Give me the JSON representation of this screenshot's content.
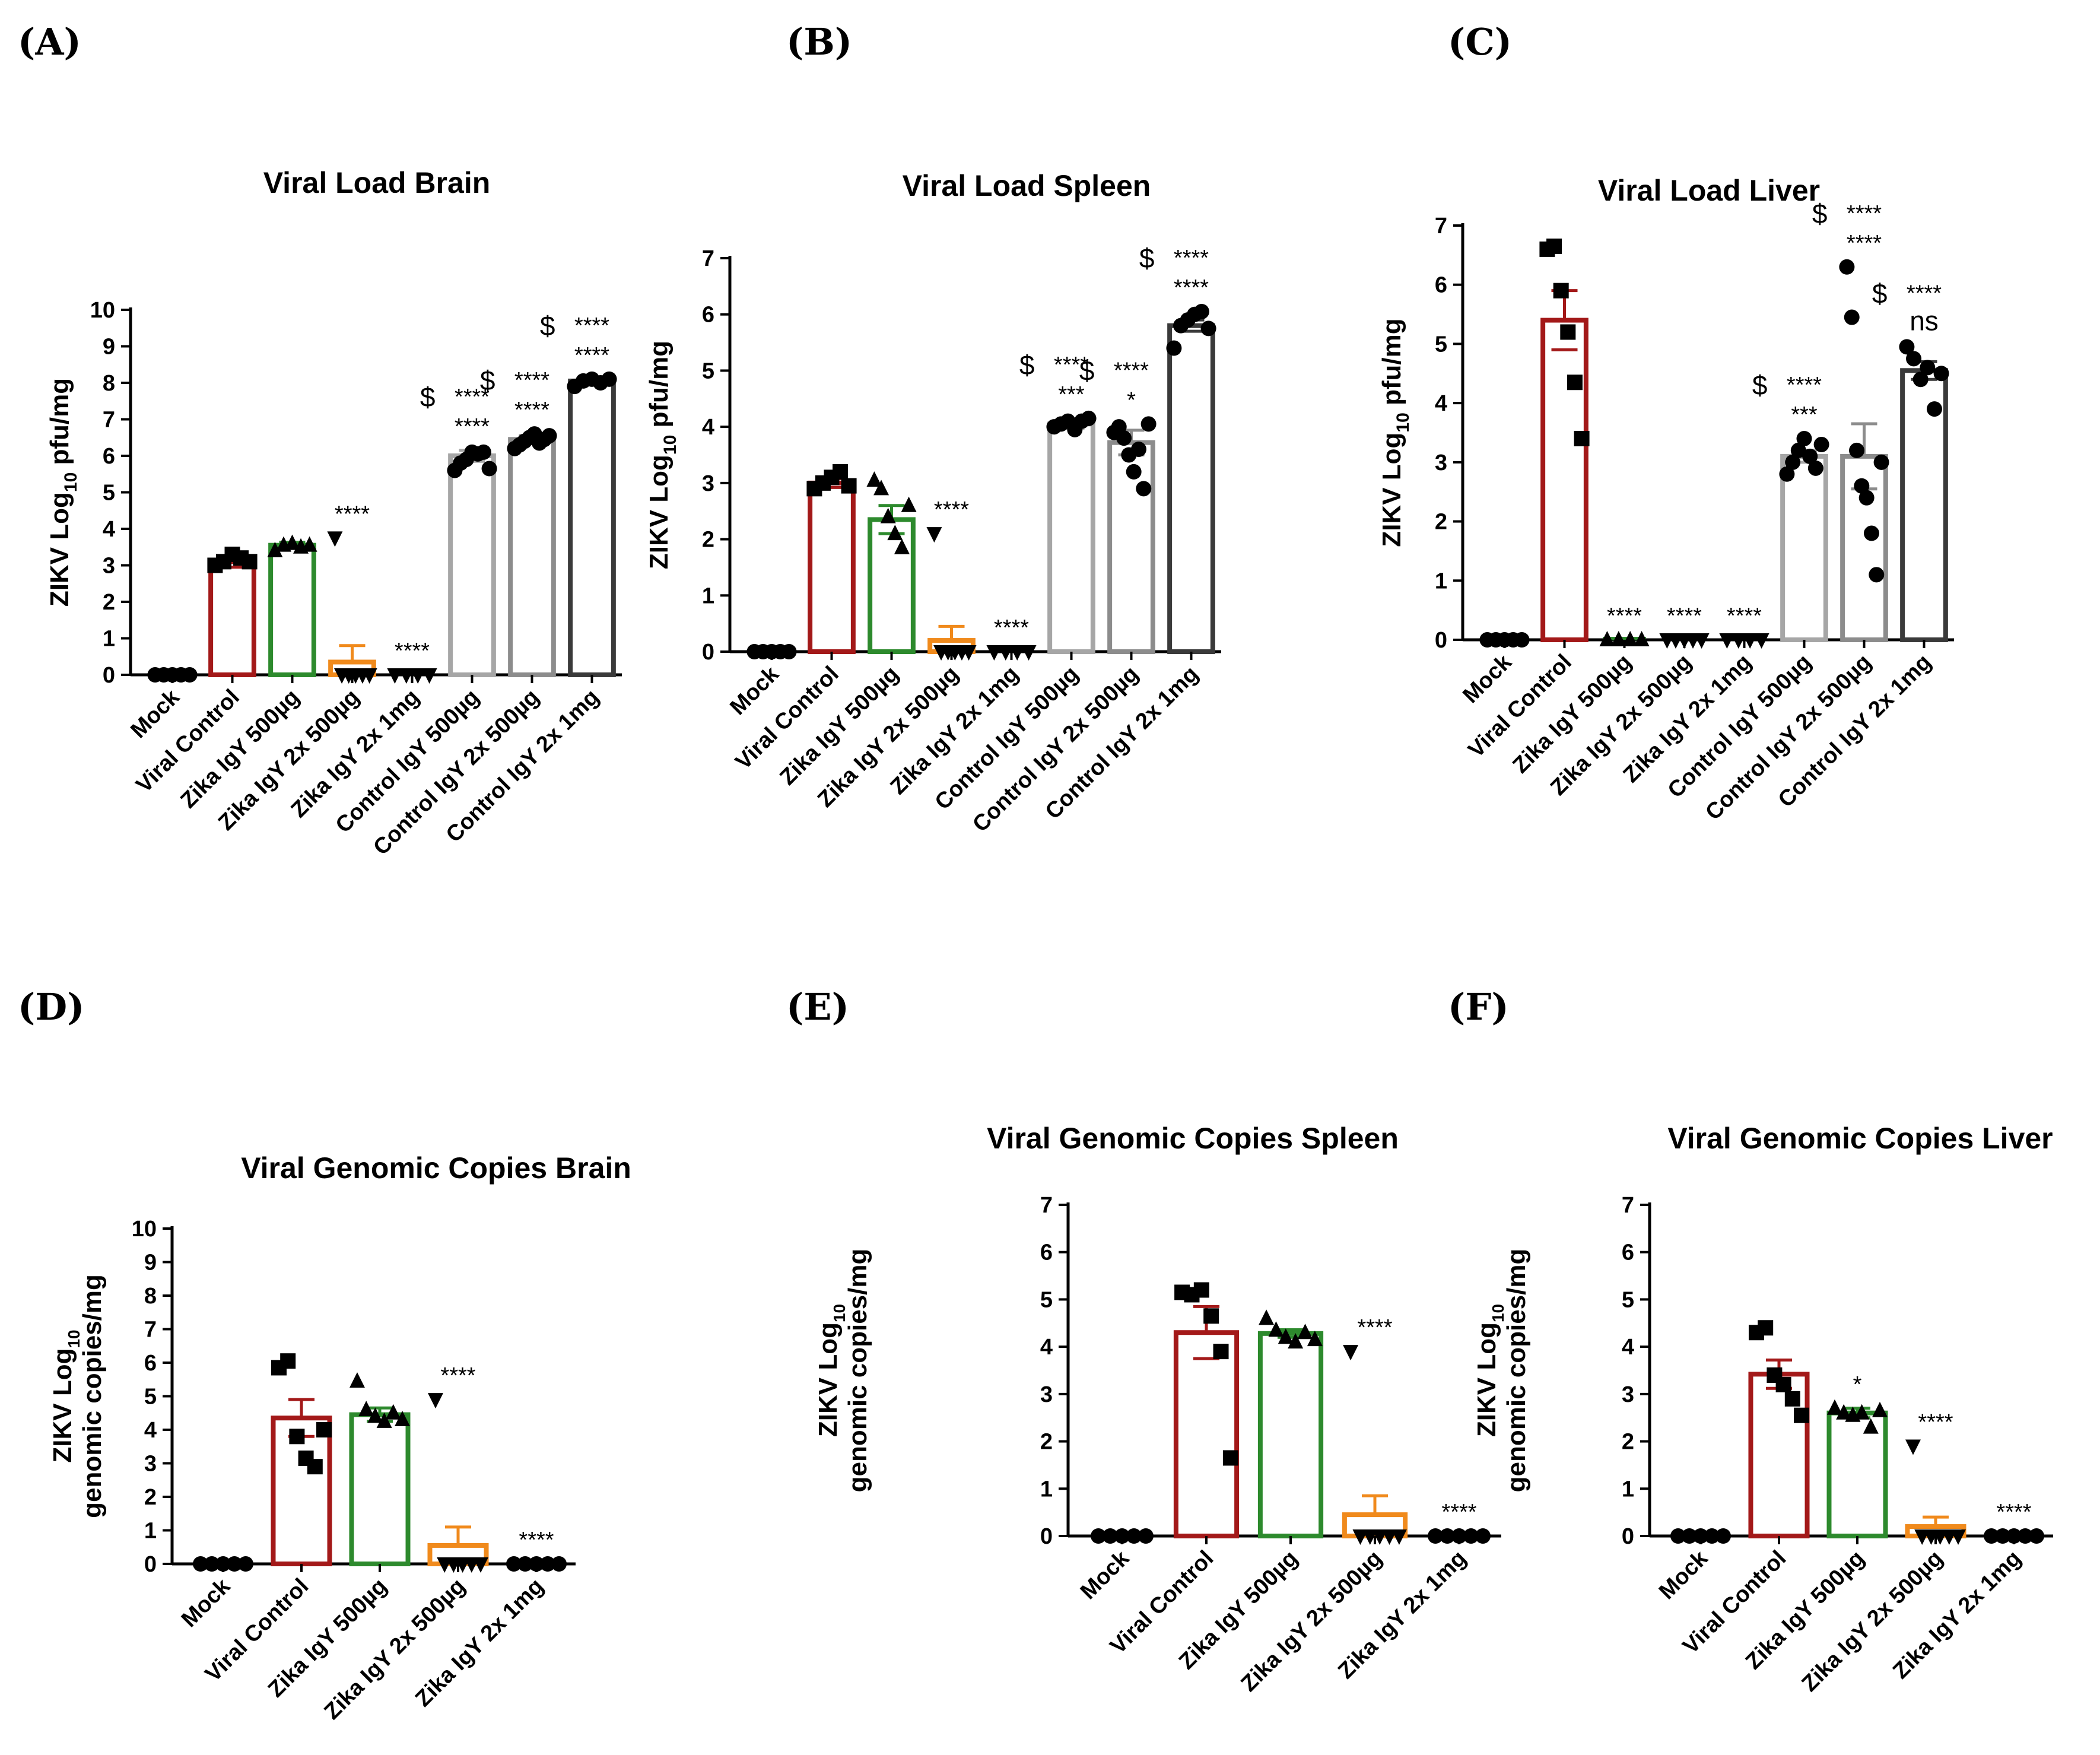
{
  "chart_data": [
    {
      "panel": "(A)",
      "type": "bar",
      "title": "Viral Load Brain",
      "ylabel": "ZIKV Log",
      "ylabel_sub": "10",
      "ylabel_rest": " pfu/mg",
      "ylim": [
        0,
        10
      ],
      "yticks": [
        0,
        1,
        2,
        3,
        4,
        5,
        6,
        7,
        8,
        9,
        10
      ],
      "categories": [
        "Mock",
        "Viral Control",
        "Zika IgY 500µg",
        "Zika IgY 2x 500µg",
        "Zika IgY 2x 1mg",
        "Control IgY 500µg",
        "Control IgY 2x 500µg",
        "Control IgY 2x 1mg"
      ],
      "values": [
        0,
        3.1,
        3.55,
        0.35,
        0,
        6.0,
        6.45,
        8.05
      ],
      "errors": [
        0,
        0.15,
        0.08,
        0.45,
        0,
        0.15,
        0.1,
        0.05
      ],
      "colors": [
        "#000000",
        "#a31919",
        "#2d8a2d",
        "#f08a1c",
        "#000000",
        "#a6a6a6",
        "#8c8c8c",
        "#3a3a3a"
      ],
      "markers": [
        "circle",
        "square",
        "triangle",
        "triangle-down",
        "triangle-down",
        "circle",
        "circle",
        "circle"
      ],
      "points": [
        [
          0,
          0,
          0,
          0,
          0
        ],
        [
          3.0,
          3.1,
          3.3,
          3.2,
          3.1
        ],
        [
          3.4,
          3.55,
          3.6,
          3.5,
          3.55
        ],
        [
          3.75,
          0,
          0,
          0,
          0,
          0
        ],
        [
          0,
          0,
          0,
          0
        ],
        [
          5.6,
          5.8,
          5.9,
          6.1,
          6.05,
          6.1,
          5.65
        ],
        [
          6.2,
          6.3,
          6.4,
          6.5,
          6.6,
          6.35,
          6.45,
          6.55
        ],
        [
          7.9,
          8.05,
          8.1,
          8.0,
          8.1
        ]
      ],
      "annotations": [
        {
          "index": 3,
          "lines": [
            "****"
          ]
        },
        {
          "index": 4,
          "lines": [
            "****"
          ]
        },
        {
          "index": 5,
          "dollar": "$",
          "lines": [
            "****",
            "****"
          ]
        },
        {
          "index": 6,
          "dollar": "$",
          "lines": [
            "****",
            "****"
          ]
        },
        {
          "index": 7,
          "dollar": "$",
          "lines": [
            "****",
            "****"
          ]
        }
      ]
    },
    {
      "panel": "(B)",
      "type": "bar",
      "title": "Viral Load Spleen",
      "ylabel": "ZIKV Log",
      "ylabel_sub": "10",
      "ylabel_rest": " pfu/mg",
      "ylim": [
        0,
        7
      ],
      "yticks": [
        0,
        1,
        2,
        3,
        4,
        5,
        6,
        7
      ],
      "categories": [
        "Mock",
        "Viral Control",
        "Zika IgY 500µg",
        "Zika IgY 2x 500µg",
        "Zika IgY 2x 1mg",
        "Control IgY 500µg",
        "Control IgY 2x 500µg",
        "Control IgY 2x 1mg"
      ],
      "values": [
        0,
        3.0,
        2.35,
        0.2,
        0,
        4.05,
        3.72,
        5.8
      ],
      "errors": [
        0,
        0.08,
        0.25,
        0.25,
        0,
        0.08,
        0.22,
        0.1
      ],
      "colors": [
        "#000000",
        "#a31919",
        "#2d8a2d",
        "#f08a1c",
        "#000000",
        "#a6a6a6",
        "#8c8c8c",
        "#3a3a3a"
      ],
      "markers": [
        "circle",
        "square",
        "triangle",
        "triangle-down",
        "triangle-down",
        "circle",
        "circle",
        "circle"
      ],
      "points": [
        [
          0,
          0,
          0,
          0,
          0
        ],
        [
          2.9,
          3.0,
          3.1,
          3.2,
          2.95
        ],
        [
          3.05,
          2.9,
          2.4,
          2.1,
          1.85,
          2.6
        ],
        [
          2.1,
          0,
          0,
          0,
          0,
          0
        ],
        [
          0,
          0,
          0,
          0
        ],
        [
          4.0,
          4.05,
          4.1,
          3.95,
          4.1,
          4.15
        ],
        [
          3.9,
          4.0,
          3.8,
          3.5,
          3.2,
          3.6,
          2.9,
          4.05
        ],
        [
          5.4,
          5.8,
          5.9,
          6.0,
          6.05,
          5.75
        ]
      ],
      "annotations": [
        {
          "index": 3,
          "lines": [
            "****"
          ]
        },
        {
          "index": 4,
          "lines": [
            "****"
          ]
        },
        {
          "index": 5,
          "dollar": "$",
          "lines": [
            "****",
            "***"
          ]
        },
        {
          "index": 6,
          "dollar": "$",
          "lines": [
            "****",
            "*"
          ]
        },
        {
          "index": 7,
          "dollar": "$",
          "lines": [
            "****",
            "****"
          ]
        }
      ]
    },
    {
      "panel": "(C)",
      "type": "bar",
      "title": "Viral Load Liver",
      "ylabel": "ZIKV Log",
      "ylabel_sub": "10",
      "ylabel_rest": " pfu/mg",
      "ylim": [
        0,
        7
      ],
      "yticks": [
        0,
        1,
        2,
        3,
        4,
        5,
        6,
        7
      ],
      "categories": [
        "Mock",
        "Viral Control",
        "Zika IgY 500µg",
        "Zika IgY 2x 500µg",
        "Zika IgY 2x 1mg",
        "Control IgY 500µg",
        "Control IgY 2x 500µg",
        "Control IgY 2x 1mg"
      ],
      "values": [
        0,
        5.4,
        0,
        0,
        0,
        3.1,
        3.1,
        4.55
      ],
      "errors": [
        0,
        0.5,
        0,
        0,
        0,
        0.1,
        0.55,
        0.15
      ],
      "colors": [
        "#000000",
        "#a31919",
        "#2d8a2d",
        "#f08a1c",
        "#000000",
        "#a6a6a6",
        "#8c8c8c",
        "#3a3a3a"
      ],
      "markers": [
        "circle",
        "square",
        "triangle",
        "triangle-down",
        "triangle-down",
        "circle",
        "circle",
        "circle"
      ],
      "points": [
        [
          0,
          0,
          0,
          0,
          0
        ],
        [
          6.6,
          6.65,
          5.9,
          5.2,
          4.35,
          3.4
        ],
        [
          0,
          0,
          0,
          0
        ],
        [
          0,
          0,
          0,
          0,
          0
        ],
        [
          0,
          0,
          0,
          0
        ],
        [
          2.8,
          3.0,
          3.2,
          3.4,
          3.1,
          2.9,
          3.3
        ],
        [
          6.3,
          5.45,
          3.2,
          2.6,
          2.4,
          1.8,
          1.1,
          3.0
        ],
        [
          4.95,
          4.75,
          4.4,
          4.6,
          3.9,
          4.5
        ]
      ],
      "annotations": [
        {
          "index": 2,
          "lines": [
            "****"
          ]
        },
        {
          "index": 3,
          "lines": [
            "****"
          ]
        },
        {
          "index": 4,
          "lines": [
            "****"
          ]
        },
        {
          "index": 5,
          "dollar": "$",
          "lines": [
            "****",
            "***"
          ]
        },
        {
          "index": 6,
          "dollar": "$",
          "lines": [
            "****",
            "****"
          ]
        },
        {
          "index": 7,
          "dollar": "$",
          "lines": [
            "****",
            "ns"
          ]
        }
      ]
    },
    {
      "panel": "(D)",
      "type": "bar",
      "title": "Viral Genomic Copies Brain",
      "ylabel": "ZIKV Log",
      "ylabel_sub": "10",
      "ylabel_rest": "genomic copies/mg",
      "ylim": [
        0,
        10
      ],
      "yticks": [
        0,
        1,
        2,
        3,
        4,
        5,
        6,
        7,
        8,
        9,
        10
      ],
      "categories": [
        "Mock",
        "Viral Control",
        "Zika IgY 500µg",
        "Zika IgY 2x 500µg",
        "Zika IgY 2x 1mg"
      ],
      "values": [
        0,
        4.35,
        4.45,
        0.55,
        0
      ],
      "errors": [
        0,
        0.55,
        0.2,
        0.55,
        0
      ],
      "colors": [
        "#000000",
        "#a31919",
        "#2d8a2d",
        "#f08a1c",
        "#000000"
      ],
      "markers": [
        "circle",
        "square",
        "triangle",
        "triangle-down",
        "circle"
      ],
      "points": [
        [
          0,
          0,
          0,
          0,
          0
        ],
        [
          5.85,
          6.05,
          3.8,
          3.15,
          2.9,
          4.0
        ],
        [
          5.45,
          4.6,
          4.4,
          4.25,
          4.5,
          4.3
        ],
        [
          4.9,
          0,
          0,
          0,
          0,
          0
        ],
        [
          0,
          0,
          0,
          0,
          0
        ]
      ],
      "annotations": [
        {
          "index": 3,
          "lines": [
            "****"
          ]
        },
        {
          "index": 4,
          "lines": [
            "****"
          ]
        }
      ]
    },
    {
      "panel": "(E)",
      "type": "bar",
      "title": "Viral Genomic Copies Spleen",
      "ylabel": "ZIKV Log",
      "ylabel_sub": "10",
      "ylabel_rest": "genomic copies/mg",
      "ylim": [
        0,
        7
      ],
      "yticks": [
        0,
        1,
        2,
        3,
        4,
        5,
        6,
        7
      ],
      "categories": [
        "Mock",
        "Viral Control",
        "Zika IgY 500µg",
        "Zika IgY 2x 500µg",
        "Zika IgY 2x 1mg"
      ],
      "values": [
        0,
        4.3,
        4.28,
        0.45,
        0
      ],
      "errors": [
        0,
        0.55,
        0.08,
        0.4,
        0
      ],
      "colors": [
        "#000000",
        "#a31919",
        "#2d8a2d",
        "#f08a1c",
        "#000000"
      ],
      "markers": [
        "circle",
        "square",
        "triangle",
        "triangle-down",
        "circle"
      ],
      "points": [
        [
          0,
          0,
          0,
          0,
          0
        ],
        [
          5.15,
          5.1,
          5.2,
          4.65,
          3.9,
          1.65
        ],
        [
          4.6,
          4.35,
          4.2,
          4.1,
          4.3,
          4.15
        ],
        [
          3.9,
          0,
          0,
          0,
          0,
          0
        ],
        [
          0,
          0,
          0,
          0,
          0
        ]
      ],
      "annotations": [
        {
          "index": 3,
          "lines": [
            "****"
          ]
        },
        {
          "index": 4,
          "lines": [
            "****"
          ]
        }
      ]
    },
    {
      "panel": "(F)",
      "type": "bar",
      "title": "Viral Genomic Copies Liver",
      "ylabel": "ZIKV Log",
      "ylabel_sub": "10",
      "ylabel_rest": "genomic copies/mg",
      "ylim": [
        0,
        7
      ],
      "yticks": [
        0,
        1,
        2,
        3,
        4,
        5,
        6,
        7
      ],
      "categories": [
        "Mock",
        "Viral Control",
        "Zika IgY 500µg",
        "Zika IgY 2x 500µg",
        "Zika IgY 2x 1mg"
      ],
      "values": [
        0,
        3.42,
        2.6,
        0.2,
        0
      ],
      "errors": [
        0,
        0.3,
        0.1,
        0.2,
        0
      ],
      "colors": [
        "#000000",
        "#a31919",
        "#2d8a2d",
        "#f08a1c",
        "#000000"
      ],
      "markers": [
        "circle",
        "square",
        "triangle",
        "triangle-down",
        "circle"
      ],
      "points": [
        [
          0,
          0,
          0,
          0,
          0
        ],
        [
          4.3,
          4.4,
          3.4,
          3.2,
          2.9,
          2.55
        ],
        [
          2.7,
          2.6,
          2.55,
          2.6,
          2.3,
          2.65
        ],
        [
          1.9,
          0,
          0,
          0,
          0,
          0
        ],
        [
          0,
          0,
          0,
          0,
          0
        ]
      ],
      "annotations": [
        {
          "index": 2,
          "lines": [
            "*"
          ]
        },
        {
          "index": 3,
          "lines": [
            "****"
          ]
        },
        {
          "index": 4,
          "lines": [
            "****"
          ]
        }
      ]
    }
  ]
}
